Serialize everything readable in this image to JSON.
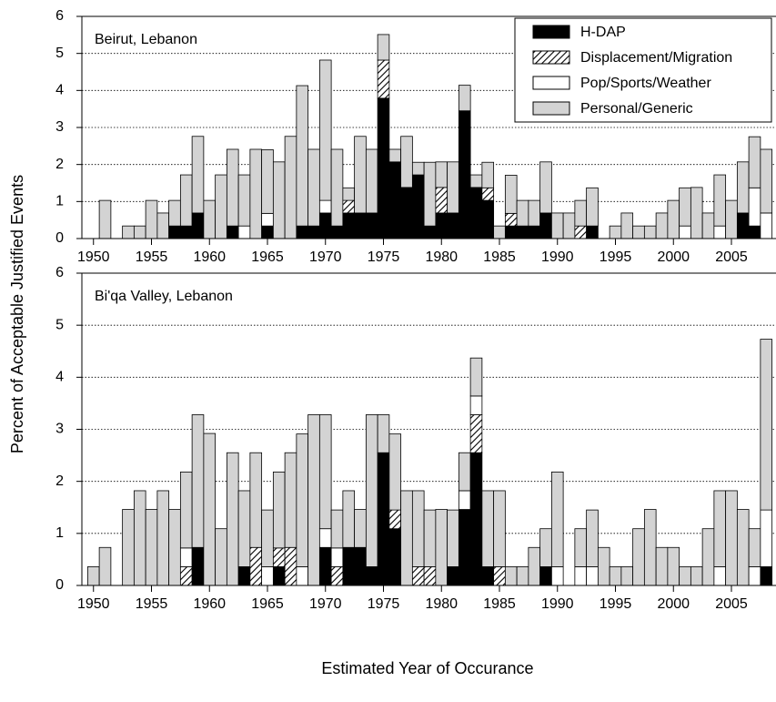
{
  "chart_data": [
    {
      "type": "bar",
      "stacked": true,
      "title": "Beirut, Lebanon",
      "ylabel": "Percent of Acceptable Justified Events",
      "x": [
        1950,
        1951,
        1952,
        1953,
        1954,
        1955,
        1956,
        1957,
        1958,
        1959,
        1960,
        1961,
        1962,
        1963,
        1964,
        1965,
        1966,
        1967,
        1968,
        1969,
        1970,
        1971,
        1972,
        1973,
        1974,
        1975,
        1976,
        1977,
        1978,
        1979,
        1980,
        1981,
        1982,
        1983,
        1984,
        1985,
        1986,
        1987,
        1988,
        1989,
        1990,
        1991,
        1992,
        1993,
        1994,
        1995,
        1996,
        1997,
        1998,
        1999,
        2000,
        2001,
        2002,
        2003,
        2004,
        2005,
        2006,
        2007,
        2008
      ],
      "xlim": [
        1949,
        2009
      ],
      "xticks": [
        1950,
        1955,
        1960,
        1965,
        1970,
        1975,
        1980,
        1985,
        1990,
        1995,
        2000,
        2005
      ],
      "ylim": [
        0,
        6
      ],
      "yticks": [
        0,
        1,
        2,
        3,
        4,
        5,
        6
      ],
      "grid": true,
      "legend": "upper right",
      "series": [
        {
          "name": "H-DAP",
          "color": "#000000",
          "values": [
            0,
            0,
            0,
            0,
            0,
            0,
            0,
            0.34,
            0.34,
            0.69,
            0,
            0,
            0.34,
            0,
            0,
            0.34,
            0,
            0,
            0.34,
            0.34,
            0.69,
            0.34,
            0.69,
            0.69,
            0.69,
            3.79,
            2.07,
            1.38,
            1.72,
            0.34,
            0.69,
            0.69,
            3.45,
            1.38,
            1.03,
            0,
            0.34,
            0.34,
            0.34,
            0.69,
            0,
            0,
            0,
            0.34,
            0,
            0,
            0,
            0,
            0,
            0,
            0,
            0,
            0,
            0,
            0,
            0,
            0.69,
            0.34,
            0
          ]
        },
        {
          "name": "Displacement/Migration",
          "color": "#000000",
          "hatch": true,
          "values": [
            0,
            0,
            0,
            0,
            0,
            0,
            0,
            0,
            0,
            0,
            0,
            0,
            0,
            0,
            0,
            0,
            0,
            0,
            0,
            0,
            0,
            0,
            0.34,
            0,
            0,
            1.03,
            0,
            0,
            0,
            0,
            0.69,
            0,
            0,
            0,
            0.34,
            0,
            0.34,
            0,
            0,
            0,
            0,
            0,
            0.34,
            0,
            0,
            0,
            0,
            0,
            0,
            0,
            0,
            0,
            0,
            0,
            0,
            0,
            0,
            0,
            0
          ]
        },
        {
          "name": "Pop/Sports/Weather",
          "color": "#ffffff",
          "values": [
            0,
            0,
            0,
            0,
            0,
            0,
            0,
            0,
            0,
            0,
            0,
            0,
            0,
            0.34,
            0,
            0.34,
            0,
            0,
            0,
            0,
            0.34,
            0,
            0,
            0,
            0,
            0,
            0,
            0,
            0,
            0,
            0,
            0,
            0,
            0,
            0,
            0,
            0,
            0,
            0,
            0,
            0,
            0,
            0,
            0,
            0,
            0,
            0,
            0,
            0,
            0,
            0,
            0.34,
            0,
            0,
            0.34,
            0,
            0,
            1.03,
            0.69
          ]
        },
        {
          "name": "Personal/Generic",
          "color": "#d3d3d3",
          "values": [
            0,
            1.03,
            0,
            0.34,
            0.34,
            1.03,
            0.69,
            0.69,
            1.38,
            2.07,
            1.03,
            1.72,
            2.07,
            1.38,
            2.41,
            1.72,
            2.07,
            2.76,
            3.79,
            2.07,
            3.79,
            2.07,
            0.34,
            2.07,
            1.72,
            0.69,
            0.34,
            1.38,
            0.34,
            1.72,
            0.69,
            1.38,
            0.69,
            0.34,
            0.69,
            0.34,
            1.03,
            0.69,
            0.69,
            1.38,
            0.69,
            0.69,
            0.69,
            1.03,
            0,
            0.34,
            0.69,
            0.34,
            0.34,
            0.69,
            1.03,
            1.03,
            1.38,
            0.69,
            1.38,
            1.03,
            1.38,
            1.38,
            1.72
          ]
        }
      ]
    },
    {
      "type": "bar",
      "stacked": true,
      "title": "Bi'qa Valley, Lebanon",
      "xlabel": "Estimated Year of Occurance",
      "x": [
        1950,
        1951,
        1952,
        1953,
        1954,
        1955,
        1956,
        1957,
        1958,
        1959,
        1960,
        1961,
        1962,
        1963,
        1964,
        1965,
        1966,
        1967,
        1968,
        1969,
        1970,
        1971,
        1972,
        1973,
        1974,
        1975,
        1976,
        1977,
        1978,
        1979,
        1980,
        1981,
        1982,
        1983,
        1984,
        1985,
        1986,
        1987,
        1988,
        1989,
        1990,
        1991,
        1992,
        1993,
        1994,
        1995,
        1996,
        1997,
        1998,
        1999,
        2000,
        2001,
        2002,
        2003,
        2004,
        2005,
        2006,
        2007,
        2008
      ],
      "xlim": [
        1949,
        2009
      ],
      "xticks": [
        1950,
        1955,
        1960,
        1965,
        1970,
        1975,
        1980,
        1985,
        1990,
        1995,
        2000,
        2005
      ],
      "ylim": [
        0,
        6
      ],
      "yticks": [
        0,
        1,
        2,
        3,
        4,
        5,
        6
      ],
      "grid": true,
      "series": [
        {
          "color": "#000000",
          "values": [
            0,
            0,
            0,
            0,
            0,
            0,
            0,
            0,
            0,
            0.73,
            0,
            0,
            0,
            0.36,
            0,
            0,
            0.36,
            0,
            0,
            0,
            0.73,
            0,
            0.73,
            0.73,
            0.36,
            2.55,
            1.09,
            0,
            0,
            0,
            0,
            0.36,
            1.46,
            2.55,
            0.36,
            0,
            0,
            0,
            0,
            0.36,
            0,
            0,
            0,
            0,
            0,
            0,
            0,
            0,
            0,
            0,
            0,
            0,
            0,
            0,
            0,
            0,
            0,
            0,
            0.36
          ]
        },
        {
          "color": "#000000",
          "hatch": true,
          "values": [
            0,
            0,
            0,
            0,
            0,
            0,
            0,
            0,
            0.36,
            0,
            0,
            0,
            0,
            0,
            0.73,
            0,
            0.36,
            0.73,
            0,
            0,
            0,
            0.36,
            0,
            0,
            0,
            0,
            0.36,
            0,
            0.36,
            0.36,
            0,
            0,
            0,
            0.73,
            0,
            0.36,
            0,
            0,
            0,
            0,
            0,
            0,
            0,
            0,
            0,
            0,
            0,
            0,
            0,
            0,
            0,
            0,
            0,
            0,
            0,
            0,
            0,
            0,
            0
          ]
        },
        {
          "color": "#ffffff",
          "values": [
            0,
            0,
            0,
            0,
            0,
            0,
            0,
            0,
            0.36,
            0,
            0,
            0,
            0,
            0,
            0,
            0.36,
            0,
            0,
            0.36,
            0,
            0.36,
            0.36,
            0,
            0,
            0,
            0,
            0,
            0,
            0,
            0,
            0,
            0,
            0.36,
            0.36,
            0,
            0,
            0,
            0,
            0,
            0,
            0.36,
            0,
            0.36,
            0.36,
            0,
            0,
            0,
            0,
            0,
            0,
            0,
            0,
            0,
            0,
            0.36,
            0,
            0,
            0.36,
            1.09
          ]
        },
        {
          "color": "#d3d3d3",
          "values": [
            0.36,
            0.73,
            0,
            1.46,
            1.82,
            1.46,
            1.82,
            1.46,
            1.46,
            2.55,
            2.92,
            1.09,
            2.55,
            1.46,
            1.82,
            1.09,
            1.46,
            1.82,
            2.55,
            3.28,
            2.19,
            0.73,
            1.09,
            0.73,
            2.92,
            0.73,
            1.46,
            1.82,
            1.46,
            1.09,
            1.46,
            1.09,
            0.73,
            0.73,
            1.46,
            1.46,
            0.36,
            0.36,
            0.73,
            0.73,
            1.82,
            0,
            0.73,
            1.09,
            0.73,
            0.36,
            0.36,
            1.09,
            1.46,
            0.73,
            0.73,
            0.36,
            0.36,
            1.09,
            1.46,
            1.82,
            1.46,
            0.73,
            3.28
          ]
        }
      ]
    }
  ]
}
